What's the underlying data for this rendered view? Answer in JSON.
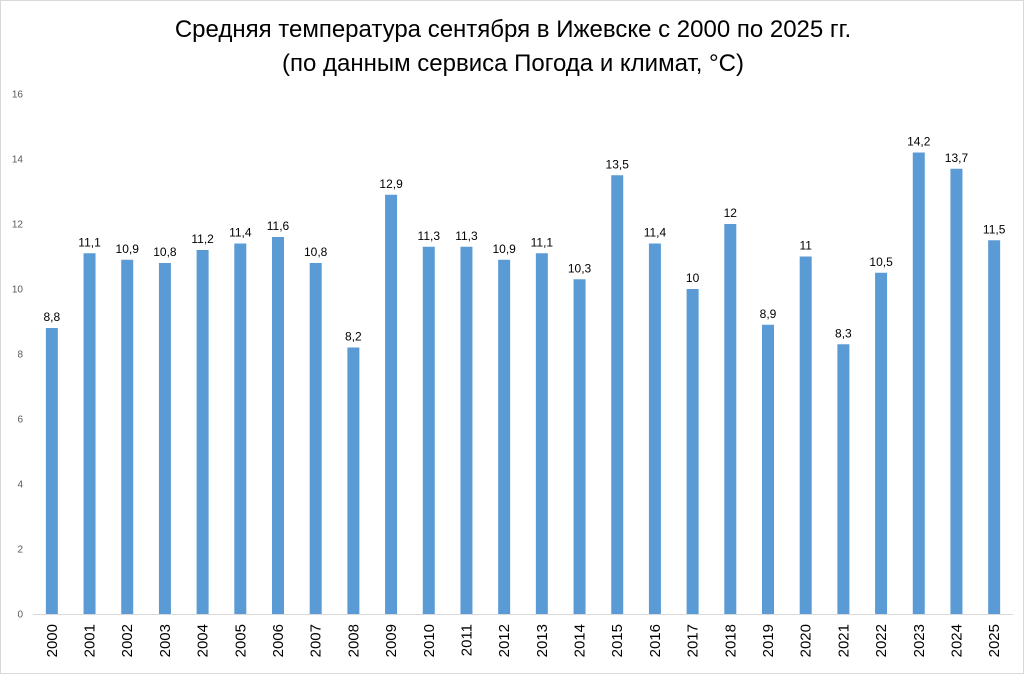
{
  "chart_data": {
    "type": "bar",
    "title": "Средняя температура сентября в Ижевске с 2000 по 2025 гг.",
    "subtitle": "(по данным сервиса Погода и климат, °C)",
    "xlabel": "",
    "ylabel": "",
    "ylim": [
      0,
      16
    ],
    "yticks": [
      0,
      2,
      4,
      6,
      8,
      10,
      12,
      14,
      16
    ],
    "grid": false,
    "legend": "none",
    "bar_color": "#5b9bd5",
    "categories": [
      "2000",
      "2001",
      "2002",
      "2003",
      "2004",
      "2005",
      "2006",
      "2007",
      "2008",
      "2009",
      "2010",
      "2011",
      "2012",
      "2013",
      "2014",
      "2015",
      "2016",
      "2017",
      "2018",
      "2019",
      "2020",
      "2021",
      "2022",
      "2023",
      "2024",
      "2025"
    ],
    "values": [
      8.8,
      11.1,
      10.9,
      10.8,
      11.2,
      11.4,
      11.6,
      10.8,
      8.2,
      12.9,
      11.3,
      11.3,
      10.9,
      11.1,
      10.3,
      13.5,
      11.4,
      10.0,
      12.0,
      8.9,
      11.0,
      8.3,
      10.5,
      14.2,
      13.7,
      11.5
    ],
    "data_labels": [
      "8,8",
      "11,1",
      "10,9",
      "10,8",
      "11,2",
      "11,4",
      "11,6",
      "10,8",
      "8,2",
      "12,9",
      "11,3",
      "11,3",
      "10,9",
      "11,1",
      "10,3",
      "13,5",
      "11,4",
      "10",
      "12",
      "8,9",
      "11",
      "8,3",
      "10,5",
      "14,2",
      "13,7",
      "11,5"
    ]
  }
}
